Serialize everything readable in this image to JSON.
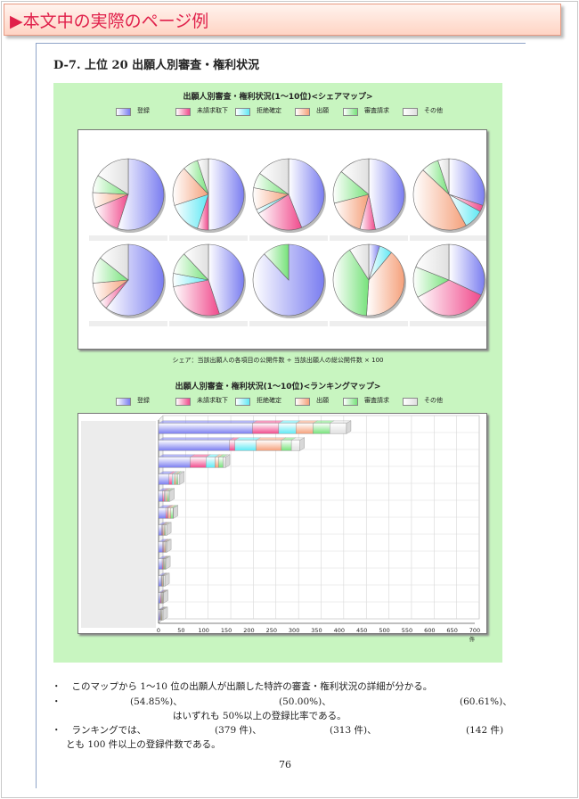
{
  "header": {
    "title": "▶本文中の実際のページ例"
  },
  "section_title": "D-7.  上位 20 出願人別審査・権利状況",
  "colors": [
    "#7a7df0",
    "#f04a8c",
    "#5ee8f4",
    "#f5a07a",
    "#76e27a",
    "#e0e0e0"
  ],
  "legend": [
    "登録",
    "未請求取下",
    "拒絶確定",
    "出願",
    "審査請求",
    "その他"
  ],
  "chart_data": [
    {
      "type": "pie",
      "title": "出願人別審査・権利状況(1〜10位)<シェアマップ>",
      "caption": "シェア：当該出願人の各項目の公開件数 ÷ 当該出願人の総公開件数 × 100",
      "categories": [
        "登録",
        "未請求取下",
        "拒絶確定",
        "出願",
        "審査請求",
        "その他"
      ],
      "pies": [
        [
          54.85,
          14,
          0,
          7,
          8,
          16.15
        ],
        [
          50.0,
          5,
          15,
          18,
          7,
          5
        ],
        [
          44,
          22,
          2,
          10,
          7,
          15
        ],
        [
          47,
          7,
          0,
          17,
          15,
          14
        ],
        [
          30,
          3,
          9,
          45,
          8,
          5
        ],
        [
          60.61,
          4,
          0,
          9,
          12,
          14.39
        ],
        [
          45,
          27,
          6,
          0,
          10,
          12
        ],
        [
          88,
          0,
          0,
          0,
          12,
          0
        ],
        [
          5,
          0,
          6,
          40,
          40,
          9
        ],
        [
          32,
          35,
          0,
          0,
          14,
          19
        ]
      ]
    },
    {
      "type": "bar",
      "title": "出願人別審査・権利状況(1〜10位)<ランキングマップ>",
      "categories": [
        "登録",
        "未請求取下",
        "拒絶確定",
        "出願",
        "審査請求",
        "その他"
      ],
      "xlim": [
        0,
        700
      ],
      "xticks": [
        0,
        50,
        100,
        150,
        200,
        250,
        300,
        350,
        400,
        450,
        500,
        550,
        600,
        650,
        700
      ],
      "xunit": "件",
      "series": [
        [
          208,
          58,
          38,
          38,
          37,
          37
        ],
        [
          157,
          12,
          47,
          56,
          22,
          19
        ],
        [
          70,
          35,
          20,
          8,
          10,
          5
        ],
        [
          23,
          7,
          4,
          5,
          4,
          4
        ],
        [
          9,
          4,
          2,
          4,
          4,
          2
        ],
        [
          16,
          4,
          1,
          6,
          5,
          1
        ],
        [
          7,
          2,
          1,
          3,
          2,
          3
        ],
        [
          9,
          2,
          1,
          3,
          1,
          2
        ],
        [
          8,
          2,
          1,
          2,
          2,
          1
        ],
        [
          6,
          1,
          1,
          2,
          1,
          3
        ],
        [
          4,
          2,
          1,
          2,
          1,
          1
        ],
        [
          3,
          1,
          1,
          2,
          1,
          2
        ]
      ]
    }
  ],
  "notes": [
    {
      "bullet": "・",
      "text": "このマップから 1〜10 位の出願人が出願した特許の審査・権利状況の詳細が分かる。"
    },
    {
      "bullet": "・",
      "parts": [
        "(54.85%)、",
        "(50.00%)、",
        "(60.61%)、"
      ]
    },
    {
      "text": "はいずれも 50%以上の登録比率である。"
    },
    {
      "bullet": "・",
      "text": "ランキングでは、",
      "parts": [
        "(379 件)、",
        "(313 件)、",
        "(142 件)"
      ]
    },
    {
      "text": "とも 100 件以上の登録件数である。"
    }
  ],
  "page_number": "76"
}
